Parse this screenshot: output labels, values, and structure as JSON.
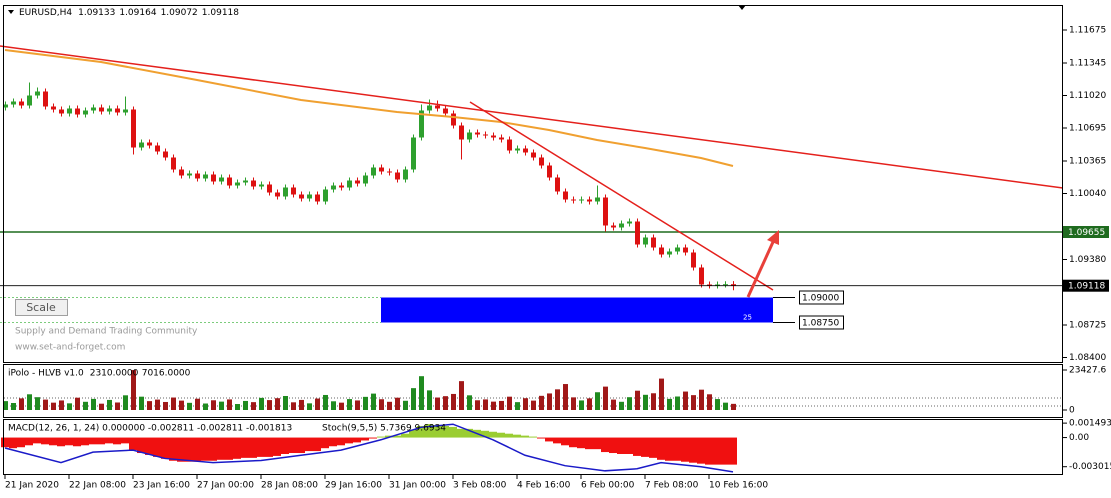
{
  "chart_data": {
    "type": "candlestick",
    "symbol": "EURUSD,H4",
    "up_color": "#2ea02e",
    "down_color": "#dd1111",
    "candles": [
      [
        1.109,
        1.1096,
        1.1087,
        1.1093
      ],
      [
        1.1093,
        1.1099,
        1.109,
        1.1096
      ],
      [
        1.1096,
        1.1099,
        1.1089,
        1.1092
      ],
      [
        1.1092,
        1.1115,
        1.1089,
        1.1102
      ],
      [
        1.1102,
        1.111,
        1.1099,
        1.1106
      ],
      [
        1.1106,
        1.1109,
        1.1088,
        1.1091
      ],
      [
        1.1091,
        1.1094,
        1.1085,
        1.1088
      ],
      [
        1.1088,
        1.1091,
        1.1081,
        1.1084
      ],
      [
        1.1084,
        1.1092,
        1.1081,
        1.1089
      ],
      [
        1.1089,
        1.1092,
        1.108,
        1.1083
      ],
      [
        1.1083,
        1.109,
        1.108,
        1.1087
      ],
      [
        1.1087,
        1.1093,
        1.1084,
        1.109
      ],
      [
        1.109,
        1.1093,
        1.1083,
        1.1086
      ],
      [
        1.1086,
        1.1092,
        1.1083,
        1.1089
      ],
      [
        1.1089,
        1.1092,
        1.1082,
        1.1085
      ],
      [
        1.1085,
        1.1101,
        1.1082,
        1.1088
      ],
      [
        1.1088,
        1.1091,
        1.1043,
        1.105
      ],
      [
        1.105,
        1.1058,
        1.1047,
        1.1055
      ],
      [
        1.1055,
        1.1058,
        1.1049,
        1.1052
      ],
      [
        1.1052,
        1.1055,
        1.1043,
        1.1046
      ],
      [
        1.1046,
        1.1049,
        1.1037,
        1.104
      ],
      [
        1.104,
        1.1043,
        1.1025,
        1.1028
      ],
      [
        1.1028,
        1.1031,
        1.1019,
        1.1022
      ],
      [
        1.1022,
        1.1027,
        1.1019,
        1.1024
      ],
      [
        1.1024,
        1.1027,
        1.1016,
        1.1019
      ],
      [
        1.1019,
        1.1026,
        1.1016,
        1.1023
      ],
      [
        1.1023,
        1.1026,
        1.1013,
        1.1016
      ],
      [
        1.1016,
        1.1023,
        1.1013,
        1.102
      ],
      [
        1.102,
        1.1023,
        1.1009,
        1.1012
      ],
      [
        1.1012,
        1.1018,
        1.1009,
        1.1015
      ],
      [
        1.1015,
        1.102,
        1.1012,
        1.1017
      ],
      [
        1.1017,
        1.102,
        1.1008,
        1.1011
      ],
      [
        1.1011,
        1.1016,
        1.1008,
        1.1013
      ],
      [
        1.1013,
        1.1016,
        1.1002,
        1.1005
      ],
      [
        1.1005,
        1.1008,
        1.0998,
        1.1001
      ],
      [
        1.1001,
        1.1013,
        1.0998,
        1.101
      ],
      [
        1.101,
        1.1013,
        1.1,
        1.1003
      ],
      [
        1.1003,
        1.1006,
        1.0996,
        1.0999
      ],
      [
        1.0999,
        1.1006,
        1.0996,
        1.1003
      ],
      [
        1.1003,
        1.1006,
        1.0993,
        1.0996
      ],
      [
        1.0996,
        1.1011,
        1.0993,
        1.1008
      ],
      [
        1.1008,
        1.1015,
        1.1005,
        1.1012
      ],
      [
        1.1012,
        1.1015,
        1.1007,
        1.101
      ],
      [
        1.101,
        1.102,
        1.1007,
        1.1017
      ],
      [
        1.1017,
        1.102,
        1.1011,
        1.1014
      ],
      [
        1.1014,
        1.1025,
        1.1011,
        1.1022
      ],
      [
        1.1022,
        1.1033,
        1.1019,
        1.103
      ],
      [
        1.103,
        1.1033,
        1.1023,
        1.1026
      ],
      [
        1.1026,
        1.1029,
        1.1022,
        1.1025
      ],
      [
        1.1025,
        1.1028,
        1.1015,
        1.1018
      ],
      [
        1.1018,
        1.1031,
        1.1015,
        1.1028
      ],
      [
        1.1028,
        1.1063,
        1.1025,
        1.106
      ],
      [
        1.106,
        1.1093,
        1.1057,
        1.1087
      ],
      [
        1.1087,
        1.1098,
        1.1084,
        1.1092
      ],
      [
        1.1092,
        1.1097,
        1.1086,
        1.1089
      ],
      [
        1.1089,
        1.1092,
        1.1081,
        1.1084
      ],
      [
        1.1084,
        1.1087,
        1.1069,
        1.1072
      ],
      [
        1.1072,
        1.1075,
        1.1038,
        1.1058
      ],
      [
        1.1058,
        1.1068,
        1.1055,
        1.1065
      ],
      [
        1.1065,
        1.1068,
        1.106,
        1.1063
      ],
      [
        1.1063,
        1.1066,
        1.1059,
        1.1062
      ],
      [
        1.1062,
        1.1065,
        1.1057,
        1.106
      ],
      [
        1.106,
        1.1063,
        1.1055,
        1.1058
      ],
      [
        1.1058,
        1.1061,
        1.1044,
        1.1047
      ],
      [
        1.1047,
        1.1052,
        1.1044,
        1.1049
      ],
      [
        1.1049,
        1.1052,
        1.1042,
        1.1045
      ],
      [
        1.1045,
        1.1048,
        1.1037,
        1.104
      ],
      [
        1.104,
        1.1043,
        1.1029,
        1.1032
      ],
      [
        1.1032,
        1.1035,
        1.1017,
        1.102
      ],
      [
        1.102,
        1.1023,
        1.1003,
        1.1006
      ],
      [
        1.1006,
        1.1009,
        1.0995,
        1.0998
      ],
      [
        1.0998,
        1.1001,
        1.0994,
        1.0997
      ],
      [
        1.0997,
        1.1001,
        1.0994,
        1.0998
      ],
      [
        1.0998,
        1.1001,
        1.0993,
        1.0996
      ],
      [
        1.0996,
        1.1012,
        1.0993,
        1.1
      ],
      [
        1.1,
        1.1003,
        1.0966,
        1.0972
      ],
      [
        1.0972,
        1.0975,
        1.0967,
        1.097
      ],
      [
        1.097,
        1.0977,
        1.0967,
        1.0974
      ],
      [
        1.0974,
        1.0979,
        1.0971,
        1.0976
      ],
      [
        1.0976,
        1.0979,
        1.095,
        1.0953
      ],
      [
        1.0953,
        1.0963,
        1.095,
        1.096
      ],
      [
        1.096,
        1.0963,
        1.0947,
        1.095
      ],
      [
        1.095,
        1.0953,
        1.094,
        1.0943
      ],
      [
        1.0943,
        1.0949,
        1.094,
        1.0946
      ],
      [
        1.0946,
        1.0953,
        1.0943,
        1.095
      ],
      [
        1.095,
        1.0953,
        1.0942,
        1.0945
      ],
      [
        1.0945,
        1.0948,
        1.0927,
        1.093
      ],
      [
        1.093,
        1.0933,
        1.091,
        1.0913
      ],
      [
        1.0913,
        1.0916,
        1.0909,
        1.0912
      ],
      [
        1.0912,
        1.0916,
        1.0909,
        1.0913
      ],
      [
        1.0913,
        1.09162,
        1.091,
        1.09133
      ],
      [
        1.09133,
        1.09164,
        1.09072,
        1.09118
      ]
    ],
    "xlim": [
      -0.625,
      132.25
    ],
    "xticks": [
      {
        "value": 0,
        "label": "21 Jan 2020"
      },
      {
        "value": 8,
        "label": "22 Jan 08:00"
      },
      {
        "value": 16,
        "label": "23 Jan 16:00"
      },
      {
        "value": 24,
        "label": "27 Jan 00:00"
      },
      {
        "value": 32,
        "label": "28 Jan 08:00"
      },
      {
        "value": 40,
        "label": "29 Jan 16:00"
      },
      {
        "value": 48,
        "label": "31 Jan 00:00"
      },
      {
        "value": 56,
        "label": "3 Feb 08:00"
      },
      {
        "value": 64,
        "label": "4 Feb 16:00"
      },
      {
        "value": 72,
        "label": "6 Feb 00:00"
      },
      {
        "value": 80,
        "label": "7 Feb 08:00"
      },
      {
        "value": 88,
        "label": "10 Feb 16:00"
      }
    ],
    "ylim": [
      1.08355,
      1.11925
    ],
    "yticks": [
      1.11675,
      1.11345,
      {
        "value": 1.1102,
        "label": "1.11020"
      },
      1.10695,
      1.10365,
      {
        "value": 1.1004,
        "label": "1.10040"
      },
      {
        "value": 1.0938,
        "label": "1.09380"
      },
      1.08725,
      {
        "value": 1.084,
        "label": "1.08400"
      }
    ],
    "moving_average": {
      "color": "#f0a030",
      "x": [
        0,
        12,
        24,
        37,
        49,
        56,
        62,
        68,
        74,
        80,
        87,
        91
      ],
      "values": [
        1.11475,
        1.11355,
        1.11175,
        1.10975,
        1.10855,
        1.10805,
        1.10755,
        1.10675,
        1.10575,
        1.10495,
        1.10395,
        1.10315
      ]
    },
    "trendlines": [
      {
        "color": "#e4201c",
        "x": [
          -0.625,
          132.25
        ],
        "values": [
          1.11515,
          1.10095
        ]
      },
      {
        "color": "#e4201c",
        "x": [
          58.125,
          96
        ],
        "values": [
          1.10955,
          1.09075
        ]
      }
    ],
    "level": {
      "value": 1.09655,
      "color": "#1f6b1f"
    },
    "zone": {
      "x": [
        47,
        96
      ],
      "values": [
        {
          "value": 1.09,
          "label": "1.09000"
        },
        {
          "value": 1.0875,
          "label": "1.08750"
        }
      ],
      "label": "25",
      "color": "#0000ff",
      "edge_color": "#7ccc7c"
    },
    "volume": {
      "title": "iPolo - HLVB v1.0",
      "levels": [
        {
          "value": 2310,
          "label": "2310.0000"
        },
        {
          "value": 7016,
          "label": "7016.0000"
        }
      ],
      "ylim": [
        -4100,
        26940
      ],
      "yticks": [
        23427.6,
        0
      ],
      "values": [
        5200,
        4100,
        6800,
        9200,
        7500,
        6100,
        4300,
        5600,
        3900,
        7200,
        4800,
        6500,
        3700,
        5900,
        4400,
        8600,
        23400,
        7800,
        5200,
        6100,
        4700,
        7300,
        5500,
        4200,
        6600,
        3800,
        5700,
        4900,
        6200,
        3500,
        5300,
        4600,
        7100,
        5800,
        6900,
        8200,
        4500,
        5900,
        3900,
        6700,
        8800,
        5100,
        4300,
        6400,
        5600,
        7700,
        9600,
        6300,
        4800,
        7200,
        5400,
        12800,
        19800,
        11500,
        7300,
        8100,
        9400,
        16900,
        8600,
        5700,
        6200,
        4900,
        5300,
        7800,
        4600,
        6900,
        5500,
        8300,
        9700,
        12100,
        15200,
        7400,
        5600,
        6800,
        10400,
        13700,
        6100,
        4800,
        7500,
        11300,
        8900,
        9800,
        18400,
        6500,
        7900,
        10800,
        8700,
        11900,
        9200,
        6400,
        4300,
        3600
      ],
      "up_color": "#1f8a1f",
      "down_color": "#a01818"
    },
    "macd": {
      "title": "MACD(12, 26, 1, 24) 0.000000 -0.002811 -0.002811 -0.001813",
      "stoch_title": "Stoch(9,5,5) 5.7369 9.6934",
      "ylim": [
        -0.00377,
        0.00192
      ],
      "yticks": [
        0.001493,
        {
          "value": 0,
          "label": "0.00"
        },
        -0.003015
      ],
      "values": [
        -0.001,
        -0.0011,
        -0.001,
        -0.0008,
        -0.0006,
        -0.0007,
        -0.0008,
        -0.0009,
        -0.0008,
        -0.0009,
        -0.0008,
        -0.0007,
        -0.0007,
        -0.0006,
        -0.0007,
        -0.0006,
        -0.0013,
        -0.0016,
        -0.0018,
        -0.002,
        -0.0022,
        -0.0024,
        -0.0025,
        -0.0025,
        -0.0025,
        -0.0024,
        -0.0024,
        -0.0023,
        -0.0023,
        -0.0022,
        -0.0021,
        -0.0021,
        -0.002,
        -0.002,
        -0.0019,
        -0.0017,
        -0.0016,
        -0.0016,
        -0.0014,
        -0.0014,
        -0.0011,
        -0.0009,
        -0.0008,
        -0.0006,
        -0.0005,
        -0.0003,
        -0.0001,
        0.0001,
        0.0002,
        0.0002,
        0.0004,
        0.0008,
        0.0012,
        0.0014,
        0.0013,
        0.0012,
        0.0011,
        0.0009,
        0.0009,
        0.0008,
        0.0007,
        0.0006,
        0.0005,
        0.0004,
        0.0003,
        0.0002,
        0.0001,
        -0.0001,
        -0.0004,
        -0.0006,
        -0.0008,
        -0.001,
        -0.0011,
        -0.0012,
        -0.0012,
        -0.0015,
        -0.0016,
        -0.0017,
        -0.0017,
        -0.0019,
        -0.002,
        -0.0021,
        -0.0023,
        -0.0024,
        -0.0024,
        -0.0025,
        -0.0026,
        -0.0027,
        -0.0028,
        -0.0028,
        -0.0028,
        -0.0028
      ],
      "pos_color": "#9acd32",
      "neg_color": "#f01010",
      "signal": {
        "color": "#1a1ac8",
        "x": [
          0,
          7,
          11,
          16,
          20,
          26,
          32,
          37,
          42,
          47,
          52,
          56,
          61,
          65,
          70,
          75,
          79,
          82,
          87,
          91
        ],
        "values": [
          -0.00108,
          -0.00259,
          -0.00151,
          -0.0013,
          -0.00216,
          -0.00259,
          -0.00237,
          -0.00183,
          -0.0013,
          -0.00023,
          0.00106,
          0.00138,
          -0.00023,
          -0.00183,
          -0.00291,
          -0.00344,
          -0.00323,
          -0.00259,
          -0.00302,
          -0.00355
        ]
      }
    }
  },
  "ui": {
    "scale_button": "Scale",
    "watermark": [
      "Supply and Demand Trading Community",
      "www.set-and-forget.com"
    ]
  }
}
